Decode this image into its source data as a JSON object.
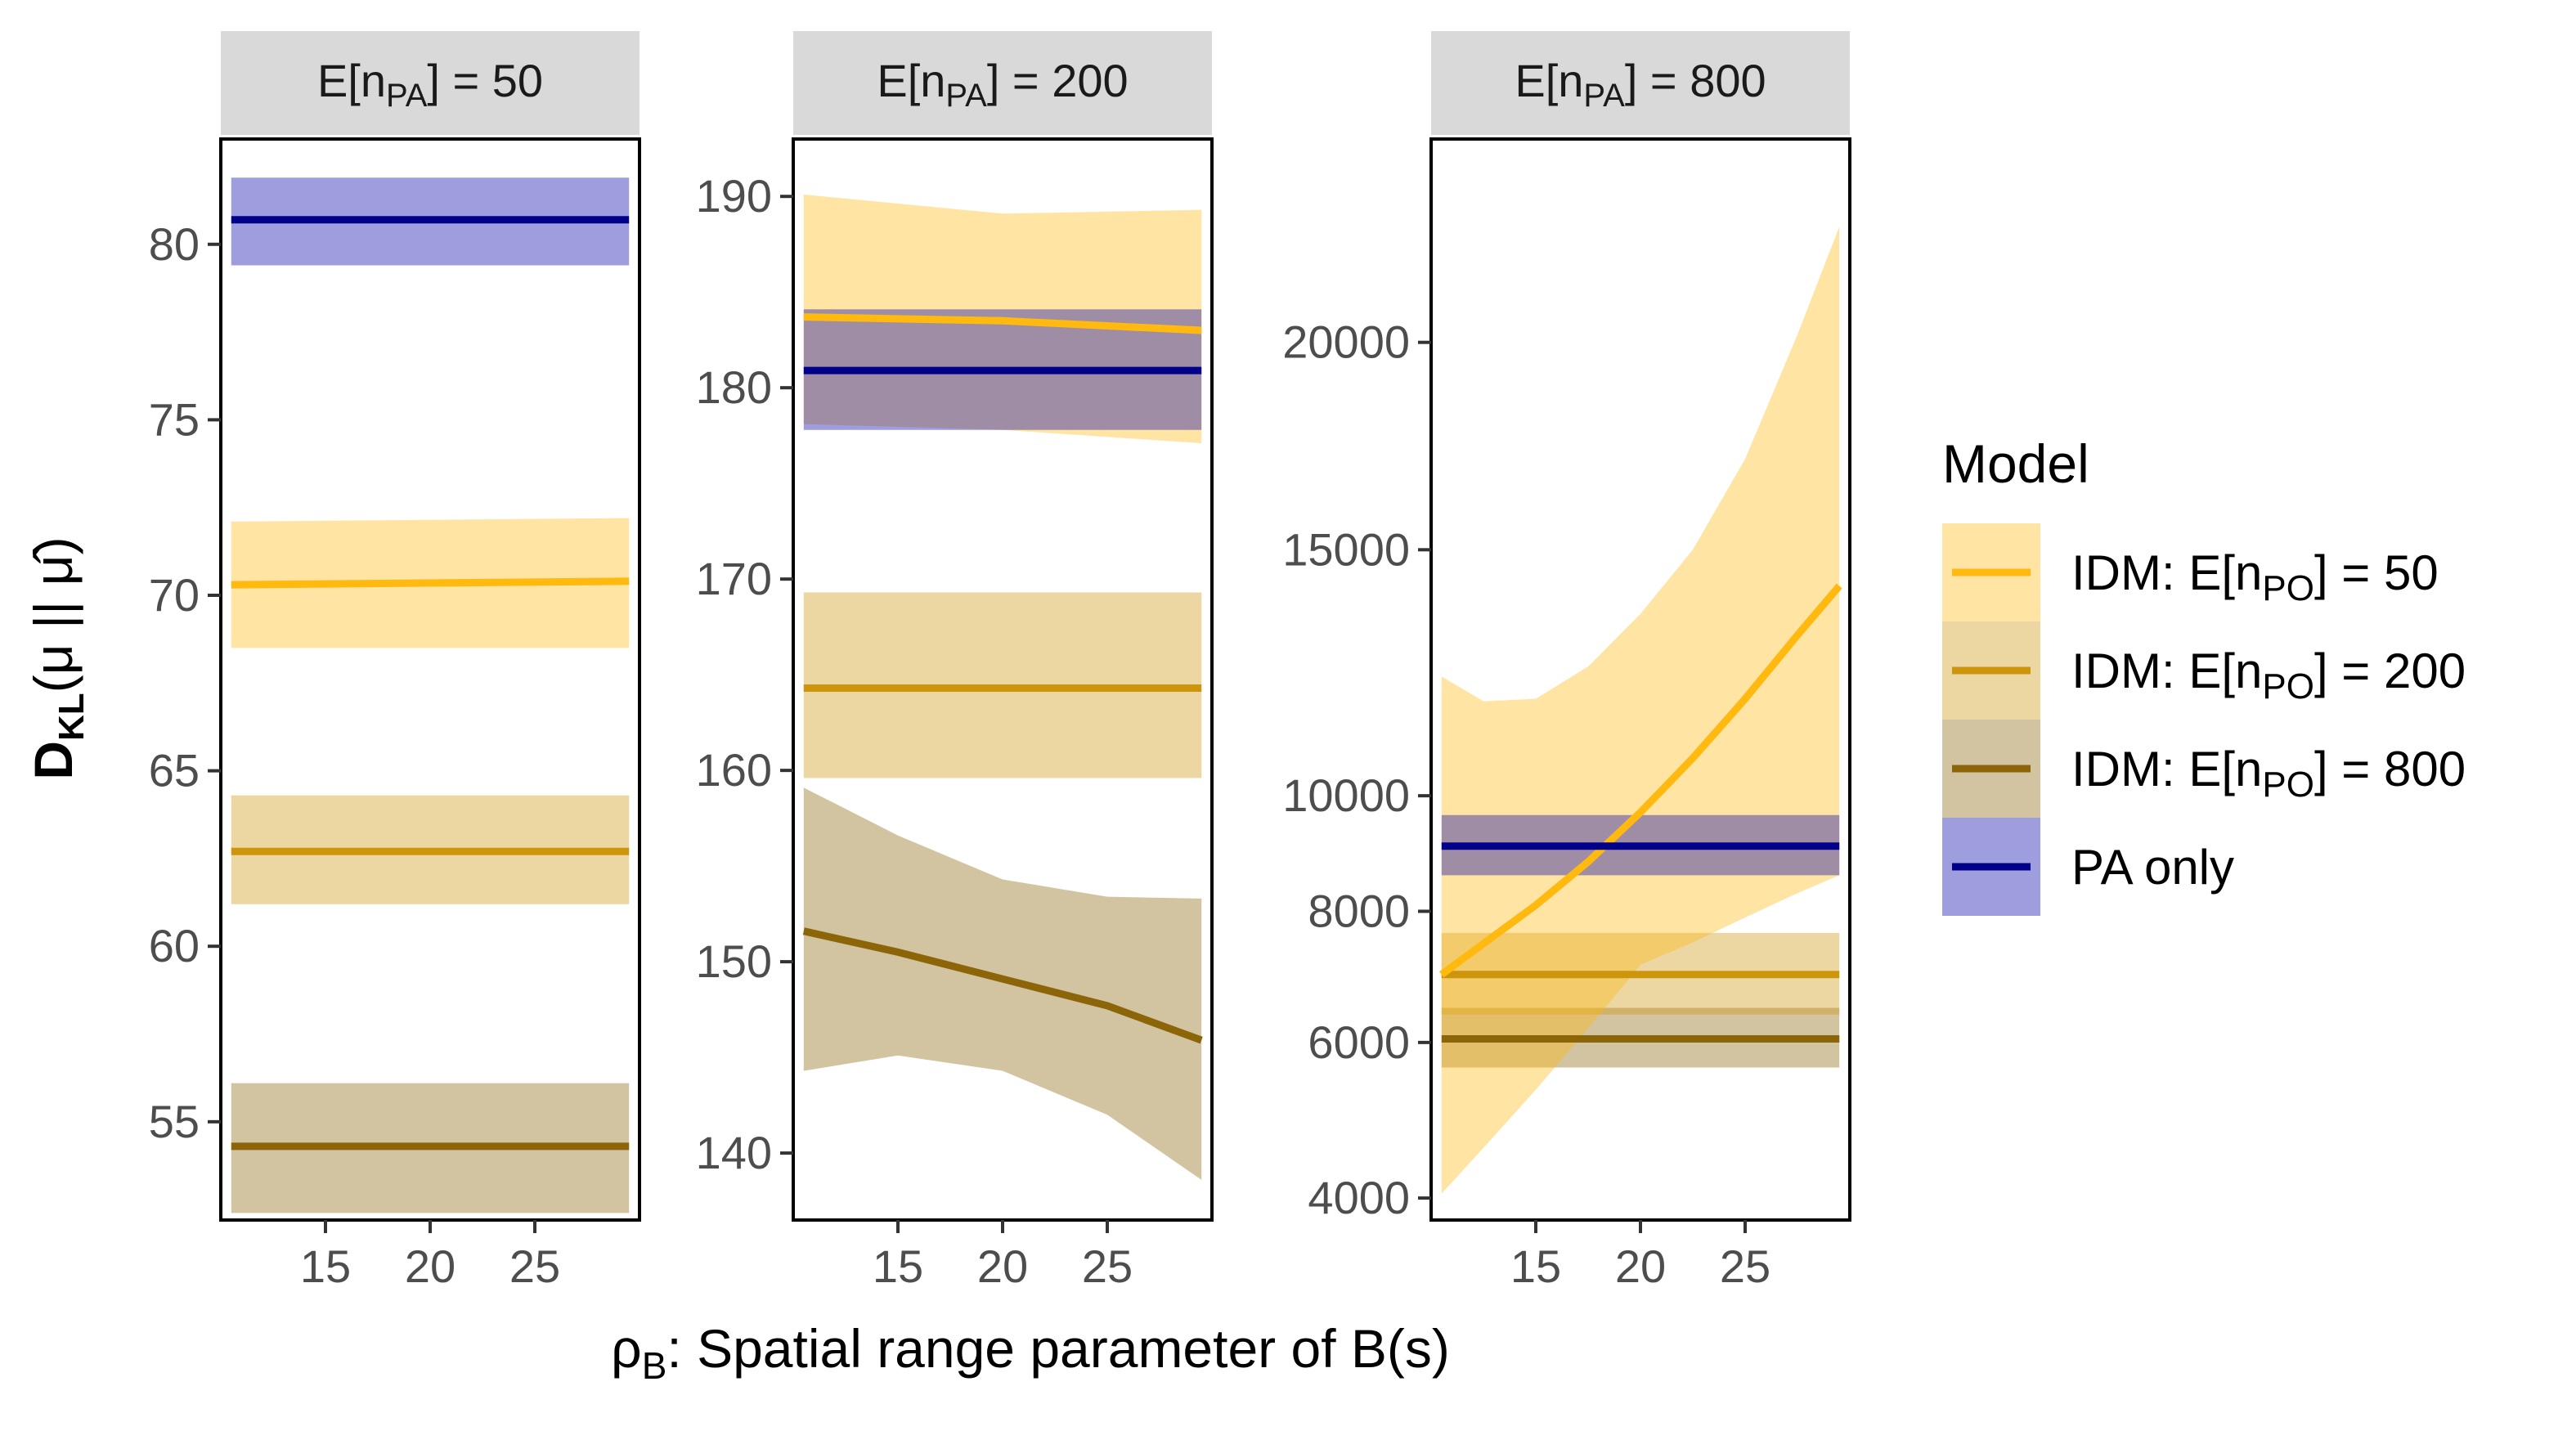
{
  "chart_data": {
    "type": "line",
    "xlabel": "ρB: Spatial range parameter of B(s)",
    "xlabel_main": "ρ",
    "xlabel_sub": "B",
    "xlabel_rest": ": Spatial range parameter of B(s)",
    "ylabel": "DKL(μ || μ̂)",
    "ylabel_main": "D",
    "ylabel_sub": "KL",
    "ylabel_rest": "(μ || μ̂)",
    "x_range": [
      10,
      30
    ],
    "x_ticks": [
      15,
      20,
      25
    ],
    "grid": false,
    "legend": {
      "title": "Model",
      "position": "right",
      "entries": [
        {
          "key": "idm50",
          "main": "IDM: E[n",
          "sub": "PO",
          "rest": "] = 50"
        },
        {
          "key": "idm200",
          "main": "IDM: E[n",
          "sub": "PO",
          "rest": "] = 200"
        },
        {
          "key": "idm800",
          "main": "IDM: E[n",
          "sub": "PO",
          "rest": "] = 800"
        },
        {
          "key": "pa",
          "main": "PA only",
          "sub": "",
          "rest": ""
        }
      ]
    },
    "colors": {
      "idm50": "#FFB90F",
      "idm200": "#CD950C",
      "idm800": "#8B6508",
      "pa": "#00008B",
      "ribbon_idm50": "#FFB90F",
      "ribbon_idm200": "#CD950C",
      "ribbon_idm800": "#8B6508",
      "ribbon_pa": "#0000A8"
    },
    "panels": [
      {
        "label_main": "E[n",
        "label_sub": "PA",
        "label_rest": "] = 50",
        "y_scale": "linear",
        "y_range": [
          52.2,
          83.0
        ],
        "y_ticks": [
          55,
          60,
          65,
          70,
          75,
          80
        ],
        "series": [
          {
            "key": "idm800",
            "x": [
              10.5,
              29.5
            ],
            "y": [
              54.3,
              54.3
            ],
            "lower": [
              52.4,
              52.4
            ],
            "upper": [
              56.1,
              56.1
            ]
          },
          {
            "key": "idm200",
            "x": [
              10.5,
              29.5
            ],
            "y": [
              62.7,
              62.7
            ],
            "lower": [
              61.2,
              61.2
            ],
            "upper": [
              64.3,
              64.3
            ]
          },
          {
            "key": "idm50",
            "x": [
              10.5,
              29.5
            ],
            "y": [
              70.3,
              70.4
            ],
            "lower": [
              68.5,
              68.5
            ],
            "upper": [
              72.1,
              72.2
            ]
          },
          {
            "key": "pa",
            "x": [
              10.5,
              29.5
            ],
            "y": [
              80.7,
              80.7
            ],
            "lower": [
              79.4,
              79.4
            ],
            "upper": [
              81.9,
              81.9
            ]
          }
        ]
      },
      {
        "label_main": "E[n",
        "label_sub": "PA",
        "label_rest": "] = 200",
        "y_scale": "linear",
        "y_range": [
          136.5,
          193.0
        ],
        "y_ticks": [
          140,
          150,
          160,
          170,
          180,
          190
        ],
        "series": [
          {
            "key": "idm800",
            "x": [
              10.5,
              15,
              20,
              25,
              29.5
            ],
            "y": [
              151.6,
              150.5,
              149.1,
              147.7,
              145.9
            ],
            "lower": [
              144.3,
              145.1,
              144.3,
              142.0,
              138.6
            ],
            "upper": [
              159.1,
              156.6,
              154.3,
              153.4,
              153.3
            ]
          },
          {
            "key": "idm200",
            "x": [
              10.5,
              29.5
            ],
            "y": [
              164.3,
              164.3
            ],
            "lower": [
              159.6,
              159.6
            ],
            "upper": [
              169.3,
              169.3
            ]
          },
          {
            "key": "idm50",
            "x": [
              10.5,
              20,
              29.5
            ],
            "y": [
              183.7,
              183.5,
              183.0
            ],
            "lower": [
              178.1,
              177.8,
              177.1
            ],
            "upper": [
              190.1,
              189.1,
              189.3
            ]
          },
          {
            "key": "pa",
            "x": [
              10.5,
              29.5
            ],
            "y": [
              180.9,
              180.9
            ],
            "lower": [
              177.8,
              177.8
            ],
            "upper": [
              184.1,
              184.1
            ]
          }
        ]
      },
      {
        "label_main": "E[n",
        "label_sub": "PA",
        "label_rest": "] = 800",
        "y_scale": "sqrt",
        "y_range": [
          3750,
          25600
        ],
        "y_ticks": [
          4000,
          6000,
          8000,
          10000,
          15000,
          20000
        ],
        "series": [
          {
            "key": "idm50",
            "x": [
              10.5,
              12.5,
              15,
              17.5,
              20,
              22.5,
              25,
              27.5,
              29.5
            ],
            "y": [
              7000,
              7480,
              8100,
              8830,
              9700,
              10700,
              11850,
              13150,
              14200
            ],
            "lower": [
              4050,
              4600,
              5350,
              6200,
              7150,
              7500,
              7900,
              8300,
              8600
            ],
            "upper": [
              12300,
              11800,
              11850,
              12500,
              13600,
              15000,
              17100,
              20200,
              23100
            ]
          },
          {
            "key": "idm200",
            "x": [
              10.5,
              29.5
            ],
            "y": [
              7000,
              7000
            ],
            "lower": [
              6400,
              6400
            ],
            "upper": [
              7650,
              7650
            ]
          },
          {
            "key": "idm800",
            "x": [
              10.5,
              29.5
            ],
            "y": [
              6050,
              6050
            ],
            "lower": [
              5650,
              5650
            ],
            "upper": [
              6500,
              6500
            ]
          },
          {
            "key": "pa",
            "x": [
              10.5,
              29.5
            ],
            "y": [
              9100,
              9100
            ],
            "lower": [
              8600,
              8600
            ],
            "upper": [
              9650,
              9650
            ]
          }
        ]
      }
    ]
  }
}
